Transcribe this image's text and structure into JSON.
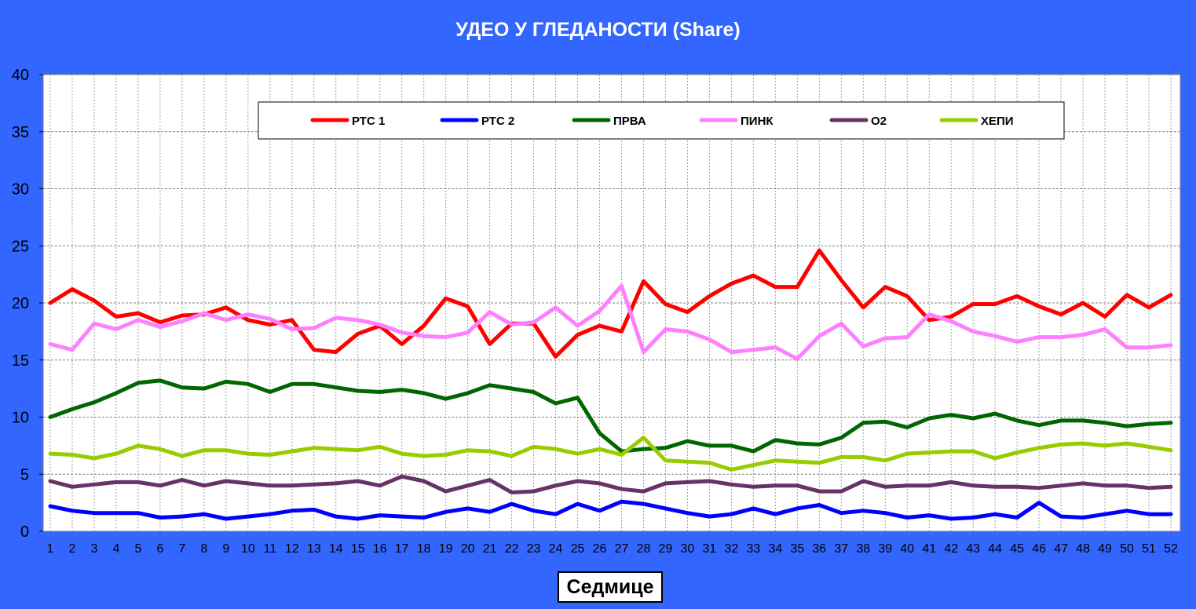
{
  "chart_data": {
    "type": "line",
    "title": "УДЕО У ГЛЕДАНОСТИ (Share)",
    "xlabel": "Седмице",
    "ylabel": "",
    "ylim": [
      0,
      40
    ],
    "yticks": [
      0,
      5,
      10,
      15,
      20,
      25,
      30,
      35,
      40
    ],
    "grid": true,
    "legend_position": "top",
    "x": [
      1,
      2,
      3,
      4,
      5,
      6,
      7,
      8,
      9,
      10,
      11,
      12,
      13,
      14,
      15,
      16,
      17,
      18,
      19,
      20,
      21,
      22,
      23,
      24,
      25,
      26,
      27,
      28,
      29,
      30,
      31,
      32,
      33,
      34,
      35,
      36,
      37,
      38,
      39,
      40,
      41,
      42,
      43,
      44,
      45,
      46,
      47,
      48,
      49,
      50,
      51,
      52
    ],
    "series": [
      {
        "name": "РТС 1",
        "color": "#ff0000",
        "values": [
          20.0,
          21.2,
          20.2,
          18.8,
          19.1,
          18.3,
          18.9,
          19.0,
          19.6,
          18.5,
          18.1,
          18.5,
          15.9,
          15.7,
          17.3,
          18.0,
          16.4,
          18.0,
          20.4,
          19.7,
          16.4,
          18.2,
          18.2,
          15.3,
          17.2,
          18.0,
          17.5,
          21.9,
          19.9,
          19.2,
          20.6,
          21.7,
          22.4,
          21.4,
          21.4,
          24.6,
          22.0,
          19.6,
          21.4,
          20.6,
          18.5,
          18.8,
          19.9,
          19.9,
          20.6,
          19.7,
          19.0,
          20.0,
          18.8,
          20.7,
          19.6,
          20.7
        ]
      },
      {
        "name": "РТС 2",
        "color": "#0000ff",
        "values": [
          2.2,
          1.8,
          1.6,
          1.6,
          1.6,
          1.2,
          1.3,
          1.5,
          1.1,
          1.3,
          1.5,
          1.8,
          1.9,
          1.3,
          1.1,
          1.4,
          1.3,
          1.2,
          1.7,
          2.0,
          1.7,
          2.4,
          1.8,
          1.5,
          2.4,
          1.8,
          2.6,
          2.4,
          2.0,
          1.6,
          1.3,
          1.5,
          2.0,
          1.5,
          2.0,
          2.3,
          1.6,
          1.8,
          1.6,
          1.2,
          1.4,
          1.1,
          1.2,
          1.5,
          1.2,
          2.5,
          1.3,
          1.2,
          1.5,
          1.8,
          1.5,
          1.5
        ]
      },
      {
        "name": "ПРВА",
        "color": "#006600",
        "values": [
          10.0,
          10.7,
          11.3,
          12.1,
          13.0,
          13.2,
          12.6,
          12.5,
          13.1,
          12.9,
          12.2,
          12.9,
          12.9,
          12.6,
          12.3,
          12.2,
          12.4,
          12.1,
          11.6,
          12.1,
          12.8,
          12.5,
          12.2,
          11.2,
          11.7,
          8.6,
          7.0,
          7.2,
          7.3,
          7.9,
          7.5,
          7.5,
          7.0,
          8.0,
          7.7,
          7.6,
          8.2,
          9.5,
          9.6,
          9.1,
          9.9,
          10.2,
          9.9,
          10.3,
          9.7,
          9.3,
          9.7,
          9.7,
          9.5,
          9.2,
          9.4,
          9.5
        ]
      },
      {
        "name": "ПИНК",
        "color": "#ff80ff",
        "values": [
          16.4,
          15.9,
          18.2,
          17.7,
          18.5,
          17.9,
          18.4,
          19.1,
          18.5,
          19.0,
          18.6,
          17.7,
          17.8,
          18.7,
          18.5,
          18.1,
          17.4,
          17.1,
          17.0,
          17.4,
          19.2,
          18.1,
          18.3,
          19.6,
          18.0,
          19.3,
          21.5,
          15.7,
          17.7,
          17.5,
          16.8,
          15.7,
          15.9,
          16.1,
          15.1,
          17.1,
          18.2,
          16.2,
          16.9,
          17.0,
          19.0,
          18.4,
          17.5,
          17.1,
          16.6,
          17.0,
          17.0,
          17.2,
          17.7,
          16.1,
          16.1,
          16.3
        ]
      },
      {
        "name": "О2",
        "color": "#663366",
        "values": [
          4.4,
          3.9,
          4.1,
          4.3,
          4.3,
          4.0,
          4.5,
          4.0,
          4.4,
          4.2,
          4.0,
          4.0,
          4.1,
          4.2,
          4.4,
          4.0,
          4.8,
          4.4,
          3.5,
          4.0,
          4.5,
          3.4,
          3.5,
          4.0,
          4.4,
          4.2,
          3.7,
          3.5,
          4.2,
          4.3,
          4.4,
          4.1,
          3.9,
          4.0,
          4.0,
          3.5,
          3.5,
          4.4,
          3.9,
          4.0,
          4.0,
          4.3,
          4.0,
          3.9,
          3.9,
          3.8,
          4.0,
          4.2,
          4.0,
          4.0,
          3.8,
          3.9
        ]
      },
      {
        "name": "ХЕПИ",
        "color": "#99cc00",
        "values": [
          6.8,
          6.7,
          6.4,
          6.8,
          7.5,
          7.2,
          6.6,
          7.1,
          7.1,
          6.8,
          6.7,
          7.0,
          7.3,
          7.2,
          7.1,
          7.4,
          6.8,
          6.6,
          6.7,
          7.1,
          7.0,
          6.6,
          7.4,
          7.2,
          6.8,
          7.2,
          6.7,
          8.2,
          6.2,
          6.1,
          6.0,
          5.4,
          5.8,
          6.2,
          6.1,
          6.0,
          6.5,
          6.5,
          6.2,
          6.8,
          6.9,
          7.0,
          7.0,
          6.4,
          6.9,
          7.3,
          7.6,
          7.7,
          7.5,
          7.7,
          7.4,
          7.1
        ]
      }
    ]
  }
}
